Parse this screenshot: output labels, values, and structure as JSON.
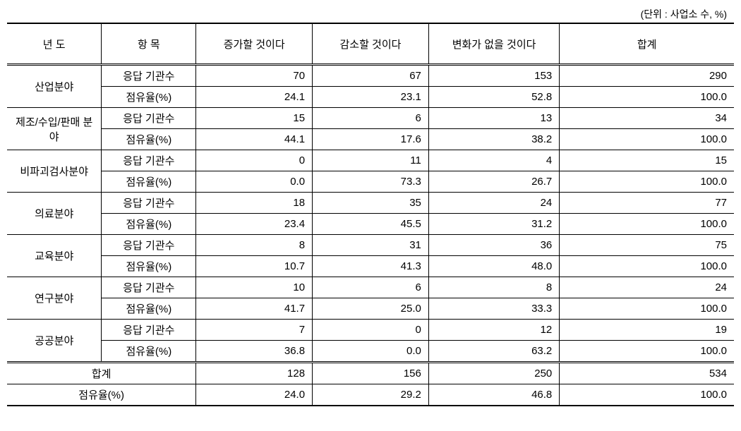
{
  "unit_label": "(단위 : 사업소 수, %)",
  "headers": {
    "year": "년 도",
    "item": "항 목",
    "increase": "증가할 것이다",
    "decrease": "감소할 것이다",
    "nochange": "변화가 없을 것이다",
    "total": "합계"
  },
  "item_labels": {
    "count": "응답 기관수",
    "share": "점유율(%)"
  },
  "sectors": [
    {
      "name": "산업분야",
      "count": [
        "70",
        "67",
        "153",
        "290"
      ],
      "share": [
        "24.1",
        "23.1",
        "52.8",
        "100.0"
      ]
    },
    {
      "name": "제조/수입/판매 분야",
      "count": [
        "15",
        "6",
        "13",
        "34"
      ],
      "share": [
        "44.1",
        "17.6",
        "38.2",
        "100.0"
      ]
    },
    {
      "name": "비파괴검사분야",
      "count": [
        "0",
        "11",
        "4",
        "15"
      ],
      "share": [
        "0.0",
        "73.3",
        "26.7",
        "100.0"
      ]
    },
    {
      "name": "의료분야",
      "count": [
        "18",
        "35",
        "24",
        "77"
      ],
      "share": [
        "23.4",
        "45.5",
        "31.2",
        "100.0"
      ]
    },
    {
      "name": "교육분야",
      "count": [
        "8",
        "31",
        "36",
        "75"
      ],
      "share": [
        "10.7",
        "41.3",
        "48.0",
        "100.0"
      ]
    },
    {
      "name": "연구분야",
      "count": [
        "10",
        "6",
        "8",
        "24"
      ],
      "share": [
        "41.7",
        "25.0",
        "33.3",
        "100.0"
      ]
    },
    {
      "name": "공공분야",
      "count": [
        "7",
        "0",
        "12",
        "19"
      ],
      "share": [
        "36.8",
        "0.0",
        "63.2",
        "100.0"
      ]
    }
  ],
  "totals": {
    "sum_label": "합계",
    "share_label": "점유율(%)",
    "sum": [
      "128",
      "156",
      "250",
      "534"
    ],
    "share": [
      "24.0",
      "29.2",
      "46.8",
      "100.0"
    ]
  },
  "style": {
    "background_color": "#ffffff",
    "border_color": "#000000",
    "font_size_body": 15,
    "font_size_unit": 14
  }
}
